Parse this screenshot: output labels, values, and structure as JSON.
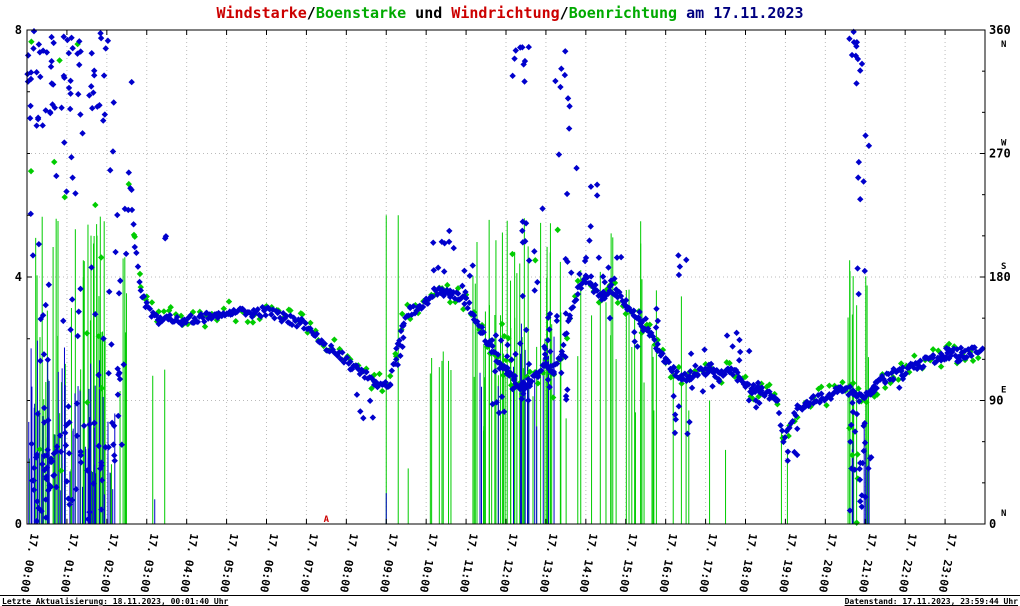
{
  "title": {
    "full": "Windstarke/Boenstarke und Windrichtung/Boenrichtung am 17.11.2023",
    "segments": [
      {
        "text": "Windstarke",
        "color": "#cc0000"
      },
      {
        "text": "/",
        "color": "#000000"
      },
      {
        "text": "Boenstarke",
        "color": "#00aa00"
      },
      {
        "text": " und ",
        "color": "#000000"
      },
      {
        "text": "Windrichtung",
        "color": "#cc0000"
      },
      {
        "text": "/",
        "color": "#000000"
      },
      {
        "text": "Boenrichtung",
        "color": "#00aa00"
      },
      {
        "text": " am 17.11.2023",
        "color": "#000080"
      }
    ]
  },
  "footer": {
    "left": "Letzte Aktualisierung: 18.11.2023, 00:01:40 Uhr",
    "right": "Datenstand: 17.11.2023, 23:59:44 Uhr"
  },
  "chart_data": {
    "type": "scatter",
    "title": "Windstarke/Boenstarke und Windrichtung/Boenrichtung am 17.11.2023",
    "x_labels": [
      "17. 00:00",
      "17. 01:00",
      "17. 02:00",
      "17. 03:00",
      "17. 04:00",
      "17. 05:00",
      "17. 06:00",
      "17. 07:00",
      "17. 08:00",
      "17. 09:00",
      "17. 10:00",
      "17. 11:00",
      "17. 12:00",
      "17. 13:00",
      "17. 14:00",
      "17. 15:00",
      "17. 16:00",
      "17. 17:00",
      "17. 18:00",
      "17. 19:00",
      "17. 20:00",
      "17. 21:00",
      "17. 22:00",
      "17. 23:00"
    ],
    "x_range_hours": [
      0,
      24
    ],
    "left_axis": {
      "range": [
        0,
        8
      ],
      "ticks": [
        {
          "v": 0,
          "label": "0"
        },
        {
          "v": 4,
          "label": "4"
        },
        {
          "v": 8,
          "label": "8"
        }
      ]
    },
    "right_axis": {
      "range": [
        0,
        360
      ],
      "ticks": [
        {
          "deg": 0,
          "label": "0",
          "cardinal": "N"
        },
        {
          "deg": 90,
          "label": "90",
          "cardinal": "E"
        },
        {
          "deg": 180,
          "label": "180",
          "cardinal": "S"
        },
        {
          "deg": 270,
          "label": "270",
          "cardinal": "W"
        },
        {
          "deg": 360,
          "label": "360",
          "cardinal": "N"
        }
      ]
    },
    "legend": [
      {
        "name": "Windstarke",
        "color": "#cc0000"
      },
      {
        "name": "Boenstarke",
        "color": "#00cc00"
      },
      {
        "name": "Windrichtung",
        "color": "#0000cc"
      },
      {
        "name": "Boenrichtung",
        "color": "#00cc00"
      }
    ],
    "colors": {
      "wind": "#0000cc",
      "gust": "#00cc00",
      "grid": "#bbbbbb",
      "frame": "#000000",
      "annotation": "#cc0000"
    },
    "grid": true,
    "seed": 7,
    "annotation": {
      "text": "A",
      "hour": 7.5
    },
    "series": {
      "direction_trace_keypoints": [
        [
          2.55,
          255
        ],
        [
          2.7,
          205
        ],
        [
          2.85,
          172
        ],
        [
          3.0,
          158
        ],
        [
          3.3,
          149
        ],
        [
          3.6,
          151
        ],
        [
          3.9,
          148
        ],
        [
          4.2,
          150
        ],
        [
          4.5,
          151
        ],
        [
          4.8,
          153
        ],
        [
          5.1,
          156
        ],
        [
          5.4,
          155
        ],
        [
          5.7,
          154
        ],
        [
          6.0,
          155
        ],
        [
          6.3,
          151
        ],
        [
          6.6,
          149
        ],
        [
          6.9,
          146
        ],
        [
          7.1,
          140
        ],
        [
          7.3,
          134
        ],
        [
          7.5,
          130
        ],
        [
          7.7,
          127
        ],
        [
          7.9,
          122
        ],
        [
          8.1,
          116
        ],
        [
          8.3,
          112
        ],
        [
          8.5,
          108
        ],
        [
          8.7,
          104
        ],
        [
          8.9,
          102
        ],
        [
          9.1,
          104
        ],
        [
          9.25,
          122
        ],
        [
          9.4,
          146
        ],
        [
          9.6,
          155
        ],
        [
          9.8,
          158
        ],
        [
          10.0,
          163
        ],
        [
          10.2,
          168
        ],
        [
          10.4,
          170
        ],
        [
          10.6,
          168
        ],
        [
          10.8,
          166
        ],
        [
          11.0,
          162
        ],
        [
          11.2,
          152
        ],
        [
          11.4,
          140
        ],
        [
          11.6,
          130
        ],
        [
          11.8,
          120
        ],
        [
          12.0,
          112
        ],
        [
          12.2,
          106
        ],
        [
          12.4,
          100
        ],
        [
          12.6,
          104
        ],
        [
          12.8,
          110
        ],
        [
          13.0,
          118
        ],
        [
          13.2,
          112
        ],
        [
          13.4,
          126
        ],
        [
          13.6,
          150
        ],
        [
          13.8,
          170
        ],
        [
          14.0,
          178
        ],
        [
          14.2,
          172
        ],
        [
          14.4,
          166
        ],
        [
          14.6,
          172
        ],
        [
          14.8,
          168
        ],
        [
          15.0,
          160
        ],
        [
          15.2,
          152
        ],
        [
          15.4,
          146
        ],
        [
          15.6,
          138
        ],
        [
          15.8,
          128
        ],
        [
          16.0,
          118
        ],
        [
          16.2,
          112
        ],
        [
          16.4,
          108
        ],
        [
          16.6,
          106
        ],
        [
          16.8,
          110
        ],
        [
          17.0,
          112
        ],
        [
          17.2,
          110
        ],
        [
          17.4,
          108
        ],
        [
          17.6,
          112
        ],
        [
          17.8,
          108
        ],
        [
          18.0,
          102
        ],
        [
          18.2,
          98
        ],
        [
          18.4,
          96
        ],
        [
          18.6,
          94
        ],
        [
          18.8,
          88
        ],
        [
          18.95,
          62
        ],
        [
          19.1,
          72
        ],
        [
          19.3,
          84
        ],
        [
          19.5,
          88
        ],
        [
          19.7,
          90
        ],
        [
          19.9,
          92
        ],
        [
          20.1,
          94
        ],
        [
          20.3,
          96
        ],
        [
          20.5,
          98
        ],
        [
          20.7,
          96
        ],
        [
          20.9,
          92
        ],
        [
          21.1,
          96
        ],
        [
          21.3,
          102
        ],
        [
          21.5,
          106
        ],
        [
          21.7,
          108
        ],
        [
          21.9,
          110
        ],
        [
          22.1,
          113
        ],
        [
          22.3,
          116
        ],
        [
          22.5,
          118
        ],
        [
          22.7,
          120
        ],
        [
          22.9,
          122
        ],
        [
          23.1,
          124
        ],
        [
          23.3,
          125
        ],
        [
          23.5,
          124
        ],
        [
          23.7,
          126
        ],
        [
          23.95,
          127
        ]
      ],
      "trace_step": 0.04,
      "trace_jitter": 3.5,
      "boen_trace_step": 0.13,
      "boen_trace_jitter": 8,
      "direction_clusters": [
        [
          0.0,
          0.7,
          290,
          360,
          26
        ],
        [
          0.0,
          0.65,
          2,
          85,
          30
        ],
        [
          0.05,
          0.55,
          95,
          265,
          10
        ],
        [
          0.6,
          1.35,
          295,
          360,
          22
        ],
        [
          0.6,
          1.45,
          2,
          92,
          26
        ],
        [
          0.7,
          1.45,
          120,
          285,
          13
        ],
        [
          1.45,
          2.15,
          290,
          360,
          16
        ],
        [
          1.45,
          2.25,
          2,
          75,
          20
        ],
        [
          1.55,
          2.35,
          100,
          270,
          11
        ],
        [
          2.1,
          2.7,
          195,
          340,
          9
        ],
        [
          2.2,
          2.6,
          40,
          130,
          7
        ],
        [
          3.35,
          3.5,
          200,
          215,
          2
        ],
        [
          8.25,
          8.8,
          70,
          95,
          5
        ],
        [
          9.2,
          9.45,
          100,
          150,
          7
        ],
        [
          10.1,
          10.7,
          178,
          215,
          9
        ],
        [
          10.9,
          11.3,
          165,
          200,
          6
        ],
        [
          11.6,
          12.65,
          80,
          150,
          28
        ],
        [
          12.15,
          12.6,
          315,
          360,
          9
        ],
        [
          12.3,
          12.95,
          165,
          240,
          11
        ],
        [
          12.9,
          13.55,
          90,
          160,
          22
        ],
        [
          13.2,
          13.6,
          265,
          345,
          9
        ],
        [
          13.45,
          14.35,
          180,
          260,
          14
        ],
        [
          14.3,
          15.1,
          150,
          200,
          12
        ],
        [
          15.1,
          15.85,
          128,
          165,
          10
        ],
        [
          16.2,
          16.6,
          58,
          95,
          7
        ],
        [
          16.3,
          16.65,
          178,
          205,
          4
        ],
        [
          16.6,
          17.35,
          95,
          130,
          12
        ],
        [
          17.4,
          18.1,
          118,
          145,
          7
        ],
        [
          18.0,
          18.65,
          85,
          105,
          9
        ],
        [
          19.0,
          19.35,
          45,
          70,
          5
        ],
        [
          20.55,
          21.15,
          2,
          110,
          28
        ],
        [
          20.6,
          21.05,
          318,
          360,
          11
        ],
        [
          20.7,
          21.1,
          120,
          300,
          9
        ],
        [
          21.2,
          21.95,
          95,
          115,
          10
        ],
        [
          23.0,
          23.9,
          118,
          130,
          8
        ]
      ],
      "boen_direction_clusters": [
        [
          0.1,
          2.4,
          0,
          360,
          14
        ],
        [
          11.8,
          13.4,
          90,
          230,
          8
        ],
        [
          20.6,
          21.1,
          0,
          110,
          5
        ]
      ],
      "gust_spike_clusters": [
        [
          0.03,
          2.55,
          0.8,
          5.0,
          55
        ],
        [
          10.0,
          10.65,
          2.2,
          2.8,
          7
        ],
        [
          11.0,
          13.55,
          1.5,
          5.0,
          44
        ],
        [
          13.6,
          15.55,
          1.8,
          5.0,
          18
        ],
        [
          15.6,
          16.6,
          1.6,
          4.5,
          8
        ],
        [
          20.5,
          21.15,
          1.8,
          5.0,
          11
        ]
      ],
      "gust_spikes": [
        [
          3.15,
          2.4
        ],
        [
          3.45,
          2.5
        ],
        [
          9.0,
          5.0
        ],
        [
          9.3,
          5.0
        ],
        [
          9.55,
          0.9
        ],
        [
          17.1,
          2.0
        ],
        [
          17.5,
          1.2
        ],
        [
          18.9,
          1.6
        ],
        [
          19.05,
          1.2
        ]
      ],
      "wind_spike_clusters": [
        [
          0.03,
          2.2,
          0.4,
          3.0,
          48
        ],
        [
          11.1,
          13.5,
          0.8,
          3.4,
          14
        ],
        [
          20.6,
          21.1,
          0.8,
          2.4,
          6
        ]
      ],
      "wind_spikes": [
        [
          9.0,
          0.5
        ],
        [
          3.2,
          0.4
        ]
      ]
    }
  }
}
